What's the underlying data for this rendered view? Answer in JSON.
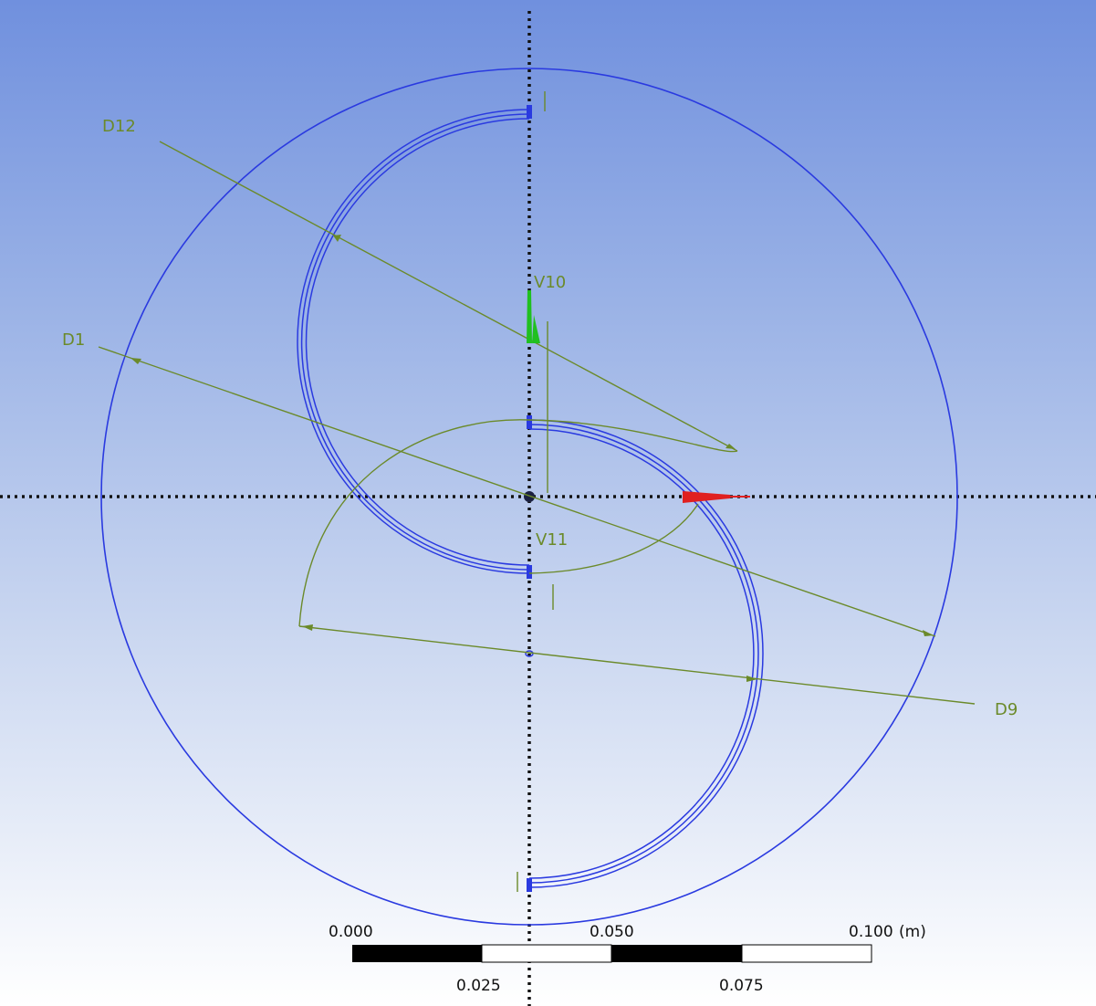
{
  "sketch": {
    "dimensions": [
      {
        "id": "d12",
        "label": "D12"
      },
      {
        "id": "d1",
        "label": "D1"
      },
      {
        "id": "d9",
        "label": "D9"
      }
    ],
    "vertices": [
      {
        "id": "v10",
        "label": "V10"
      },
      {
        "id": "v11",
        "label": "V11"
      }
    ]
  },
  "scale_bar": {
    "top_labels": [
      "0.000",
      "0.050",
      "0.100"
    ],
    "unit": "(m)",
    "bottom_labels": [
      "0.025",
      "0.075"
    ]
  },
  "colors": {
    "geometry": "#2a3ae0",
    "dimension": "#6b8a2a",
    "axis": "#111111",
    "x_axis_triad": "#e02020",
    "y_axis_triad": "#20c020"
  }
}
